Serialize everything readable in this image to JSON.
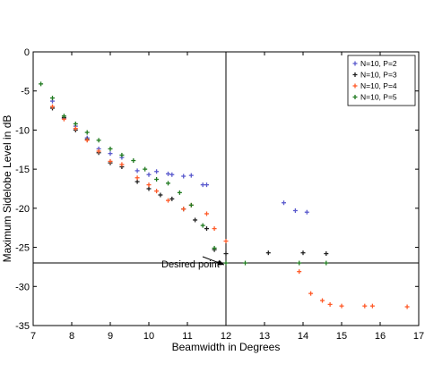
{
  "chart_data": {
    "type": "scatter",
    "title": "",
    "xlabel": "Beamwidth in Degrees",
    "ylabel": "Maximum Sidelobe Level in dB",
    "xlim": [
      7,
      17
    ],
    "ylim": [
      -35,
      0
    ],
    "xticks": [
      7,
      8,
      9,
      10,
      11,
      12,
      13,
      14,
      15,
      16,
      17
    ],
    "yticks": [
      0,
      -5,
      -10,
      -15,
      -20,
      -25,
      -30,
      -35
    ],
    "grid": false,
    "legend_position": "top-right",
    "reference_lines": {
      "x": 12,
      "y": -27
    },
    "annotation": {
      "text": "Desired point",
      "x": 12,
      "y": -27
    },
    "series": [
      {
        "name": "N=10, P=2",
        "color": "#5a5acd",
        "points": [
          [
            7.5,
            -6.3
          ],
          [
            7.8,
            -8.5
          ],
          [
            8.1,
            -9.5
          ],
          [
            8.4,
            -11.0
          ],
          [
            8.7,
            -12.4
          ],
          [
            9.0,
            -13.0
          ],
          [
            9.3,
            -13.5
          ],
          [
            9.7,
            -15.2
          ],
          [
            10.0,
            -15.7
          ],
          [
            10.2,
            -15.3
          ],
          [
            10.5,
            -15.6
          ],
          [
            10.6,
            -15.7
          ],
          [
            10.9,
            -15.9
          ],
          [
            11.1,
            -15.8
          ],
          [
            11.4,
            -17.0
          ],
          [
            11.5,
            -17.0
          ],
          [
            13.5,
            -19.3
          ],
          [
            13.8,
            -20.3
          ],
          [
            14.1,
            -20.5
          ]
        ]
      },
      {
        "name": "N=10, P=3",
        "color": "#202020",
        "points": [
          [
            7.5,
            -7.2
          ],
          [
            7.8,
            -8.4
          ],
          [
            8.1,
            -10.0
          ],
          [
            8.4,
            -11.2
          ],
          [
            8.7,
            -12.9
          ],
          [
            9.0,
            -14.2
          ],
          [
            9.3,
            -14.7
          ],
          [
            9.7,
            -16.6
          ],
          [
            10.0,
            -17.5
          ],
          [
            10.3,
            -18.3
          ],
          [
            10.6,
            -18.8
          ],
          [
            10.9,
            -20.1
          ],
          [
            11.2,
            -21.5
          ],
          [
            11.5,
            -22.6
          ],
          [
            11.7,
            -25.3
          ],
          [
            12.0,
            -25.8
          ],
          [
            13.1,
            -25.7
          ],
          [
            14.0,
            -25.7
          ],
          [
            14.6,
            -25.8
          ]
        ]
      },
      {
        "name": "N=10, P=4",
        "color": "#ff5a28",
        "points": [
          [
            7.5,
            -7.0
          ],
          [
            7.8,
            -8.6
          ],
          [
            8.1,
            -9.8
          ],
          [
            8.4,
            -11.3
          ],
          [
            8.7,
            -12.7
          ],
          [
            9.0,
            -14.0
          ],
          [
            9.3,
            -14.4
          ],
          [
            9.7,
            -16.1
          ],
          [
            10.0,
            -17.0
          ],
          [
            10.2,
            -17.8
          ],
          [
            10.5,
            -19.0
          ],
          [
            10.9,
            -20.1
          ],
          [
            11.1,
            -19.6
          ],
          [
            11.5,
            -20.7
          ],
          [
            11.7,
            -22.6
          ],
          [
            12.0,
            -24.2
          ],
          [
            13.9,
            -28.1
          ],
          [
            14.2,
            -30.9
          ],
          [
            14.5,
            -31.8
          ],
          [
            14.7,
            -32.3
          ],
          [
            15.0,
            -32.5
          ],
          [
            15.6,
            -32.5
          ],
          [
            15.8,
            -32.5
          ],
          [
            16.7,
            -32.6
          ]
        ]
      },
      {
        "name": "N=10, P=5",
        "color": "#207a20",
        "points": [
          [
            7.2,
            -4.1
          ],
          [
            7.5,
            -5.9
          ],
          [
            7.8,
            -8.2
          ],
          [
            8.1,
            -9.2
          ],
          [
            8.4,
            -10.3
          ],
          [
            8.7,
            -11.3
          ],
          [
            9.0,
            -12.4
          ],
          [
            9.3,
            -13.2
          ],
          [
            9.6,
            -13.9
          ],
          [
            9.9,
            -15.0
          ],
          [
            10.2,
            -16.3
          ],
          [
            10.5,
            -16.8
          ],
          [
            10.8,
            -18.0
          ],
          [
            11.1,
            -19.6
          ],
          [
            11.4,
            -22.2
          ],
          [
            11.7,
            -25.1
          ],
          [
            12.0,
            -27.0
          ],
          [
            12.5,
            -27.0
          ],
          [
            13.9,
            -27.0
          ],
          [
            14.6,
            -27.0
          ]
        ]
      }
    ]
  }
}
